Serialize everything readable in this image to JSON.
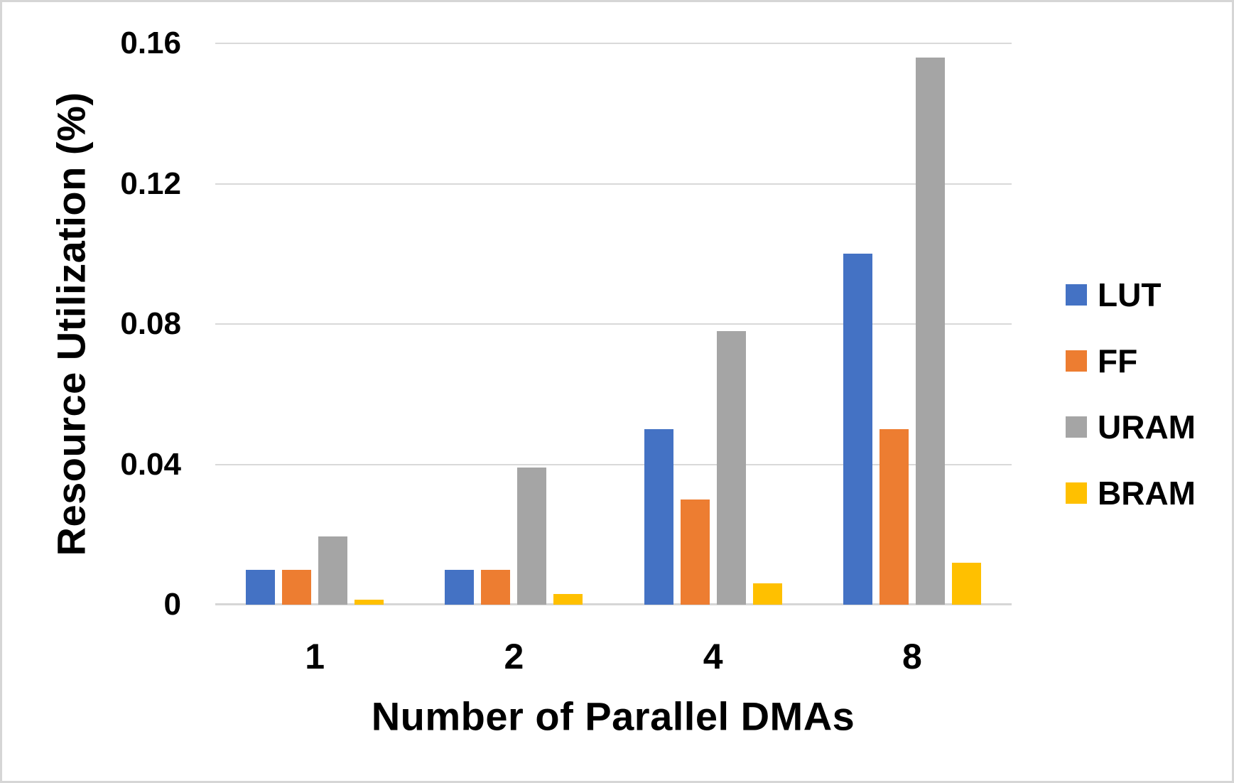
{
  "chart_data": {
    "type": "bar",
    "xlabel": "Number of Parallel DMAs",
    "ylabel": "Resource Utilization (%)",
    "categories": [
      "1",
      "2",
      "4",
      "8"
    ],
    "series": [
      {
        "name": "LUT",
        "color": "#4472C4",
        "values": [
          0.01,
          0.01,
          0.05,
          0.1
        ]
      },
      {
        "name": "FF",
        "color": "#ED7D31",
        "values": [
          0.01,
          0.01,
          0.03,
          0.05
        ]
      },
      {
        "name": "URAM",
        "color": "#A5A5A5",
        "values": [
          0.0195,
          0.039,
          0.078,
          0.156
        ]
      },
      {
        "name": "BRAM",
        "color": "#FFC000",
        "values": [
          0.0015,
          0.003,
          0.006,
          0.012
        ]
      }
    ],
    "ylim": [
      0,
      0.16
    ],
    "yticks": [
      {
        "value": 0,
        "label": "0"
      },
      {
        "value": 0.04,
        "label": "0.04"
      },
      {
        "value": 0.08,
        "label": "0.08"
      },
      {
        "value": 0.12,
        "label": "0.12"
      },
      {
        "value": 0.16,
        "label": "0.16"
      }
    ],
    "legend_position": "right",
    "grid": "horizontal",
    "gridline_color": "#D9D9D9",
    "axis_line_color": "#D6D6D6"
  }
}
